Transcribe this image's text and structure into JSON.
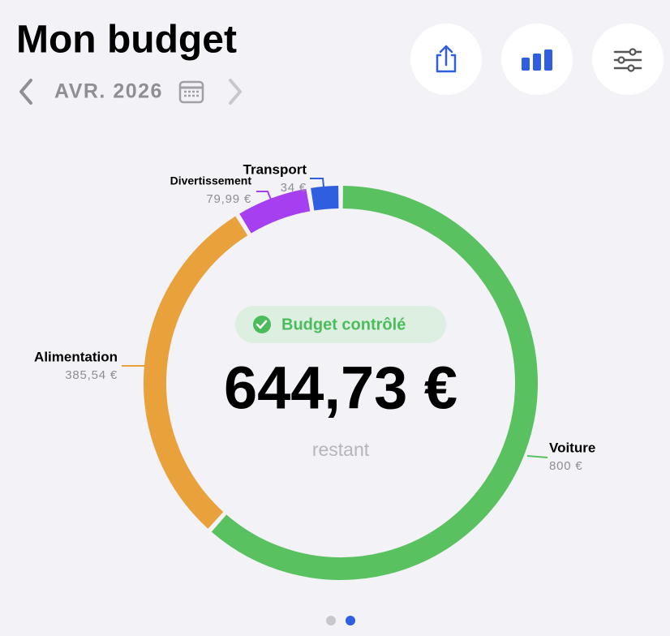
{
  "header": {
    "title": "Mon budget",
    "month": "AVR. 2026"
  },
  "chart_data": {
    "type": "pie",
    "categories": [
      "Voiture",
      "Alimentation",
      "Divertissement",
      "Transport"
    ],
    "values": [
      800,
      385.54,
      79.99,
      34
    ],
    "value_labels": [
      "800 €",
      "385,54 €",
      "79,99 €",
      "34 €"
    ],
    "colors": [
      "#5ac160",
      "#e9a23b",
      "#a53ff0",
      "#2f5fe0"
    ]
  },
  "center": {
    "status": "Budget contrôlé",
    "amount": "644,73 €",
    "caption": "restant"
  }
}
